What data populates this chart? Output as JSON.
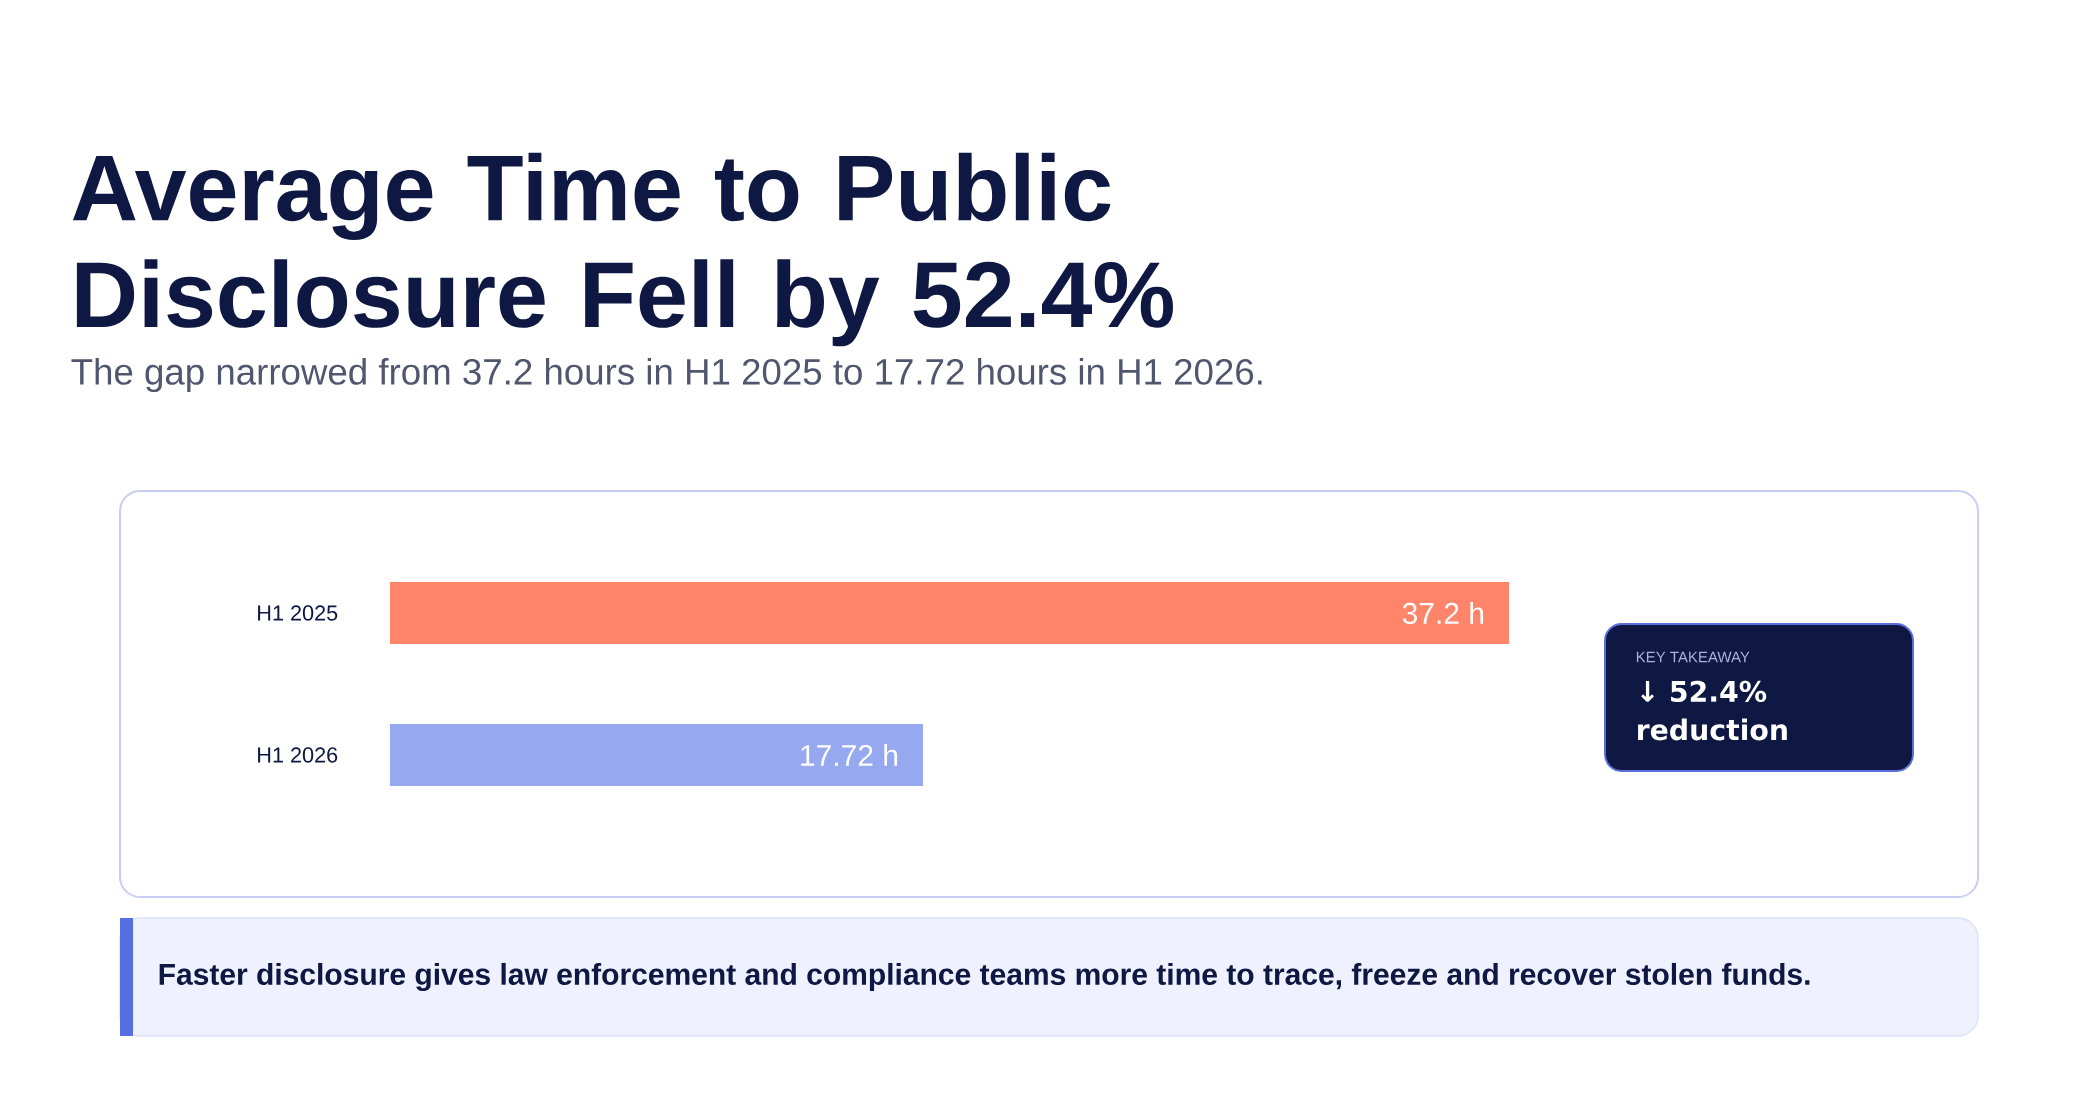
{
  "chart_data": {
    "type": "bar",
    "orientation": "horizontal",
    "title": "Average Time to Public Disclosure Fell by 52.4%",
    "subtitle": "The gap narrowed from 37.2 hours in H1 2025 to 17.72 hours in H1 2026.",
    "categories": [
      "H1 2025",
      "H1 2026"
    ],
    "values": [
      37.2,
      17.72
    ],
    "colors": [
      "#ff8469",
      "#96a9f0"
    ],
    "value_labels": [
      "37.2 h",
      "17.72 h"
    ],
    "annotations": [
      "KEY TAKEAWAY",
      "↓ 52.4% reduction",
      "Faster disclosure gives law enforcement and compliance teams more time to trace, freeze and recover stolen funds."
    ]
  }
}
